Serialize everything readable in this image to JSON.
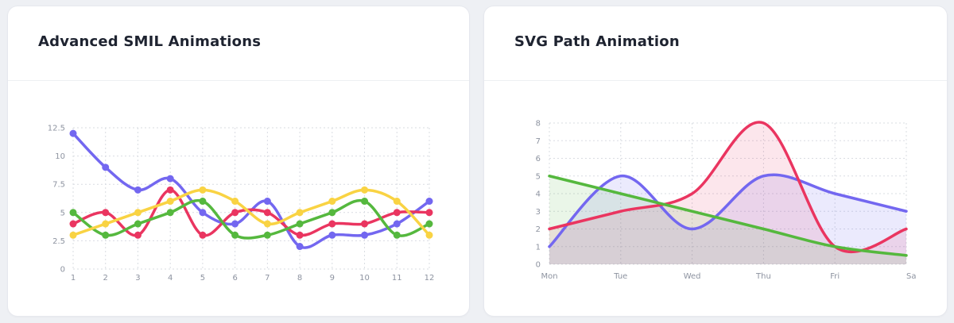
{
  "cards": [
    {
      "title": "Advanced SMIL Animations"
    },
    {
      "title": "SVG Path Animation"
    }
  ],
  "chart_data": [
    {
      "type": "line",
      "title": "Advanced SMIL Animations",
      "x": [
        1,
        2,
        3,
        4,
        5,
        6,
        7,
        8,
        9,
        10,
        11,
        12
      ],
      "x_tick_labels": [
        "1",
        "2",
        "3",
        "4",
        "5",
        "6",
        "7",
        "8",
        "9",
        "10",
        "11",
        "12"
      ],
      "y_tick_labels": [
        "0",
        "2.5",
        "5",
        "7.5",
        "10",
        "12.5"
      ],
      "ylim": [
        0,
        12.5
      ],
      "grid": true,
      "markers": true,
      "smooth": true,
      "series": [
        {
          "color": "#7367f0",
          "values": [
            12,
            9,
            7,
            8,
            5,
            4,
            6,
            2,
            3,
            3,
            4,
            6
          ]
        },
        {
          "color": "#ea3560",
          "values": [
            4,
            5,
            3,
            7,
            3,
            5,
            5,
            3,
            4,
            4,
            5,
            5
          ]
        },
        {
          "color": "#55b83e",
          "values": [
            5,
            3,
            4,
            5,
            6,
            3,
            3,
            4,
            5,
            6,
            3,
            4
          ]
        },
        {
          "color": "#f9d343",
          "values": [
            3,
            4,
            5,
            6,
            7,
            6,
            4,
            5,
            6,
            7,
            6,
            3
          ]
        }
      ]
    },
    {
      "type": "area",
      "title": "SVG Path Animation",
      "categories": [
        "Mon",
        "Tue",
        "Wed",
        "Thu",
        "Fri",
        "Sa"
      ],
      "y_tick_labels": [
        "0",
        "1",
        "2",
        "3",
        "4",
        "5",
        "6",
        "7",
        "8"
      ],
      "ylim": [
        0,
        8
      ],
      "grid": true,
      "smooth": true,
      "series": [
        {
          "color": "#7367f0",
          "values": [
            1,
            5,
            2,
            5,
            4,
            3
          ]
        },
        {
          "color": "#ea3560",
          "values": [
            2,
            3,
            4,
            8,
            1,
            2
          ]
        },
        {
          "color": "#55b83e",
          "values": [
            5,
            4,
            3,
            2,
            1,
            0.5
          ]
        }
      ]
    }
  ]
}
